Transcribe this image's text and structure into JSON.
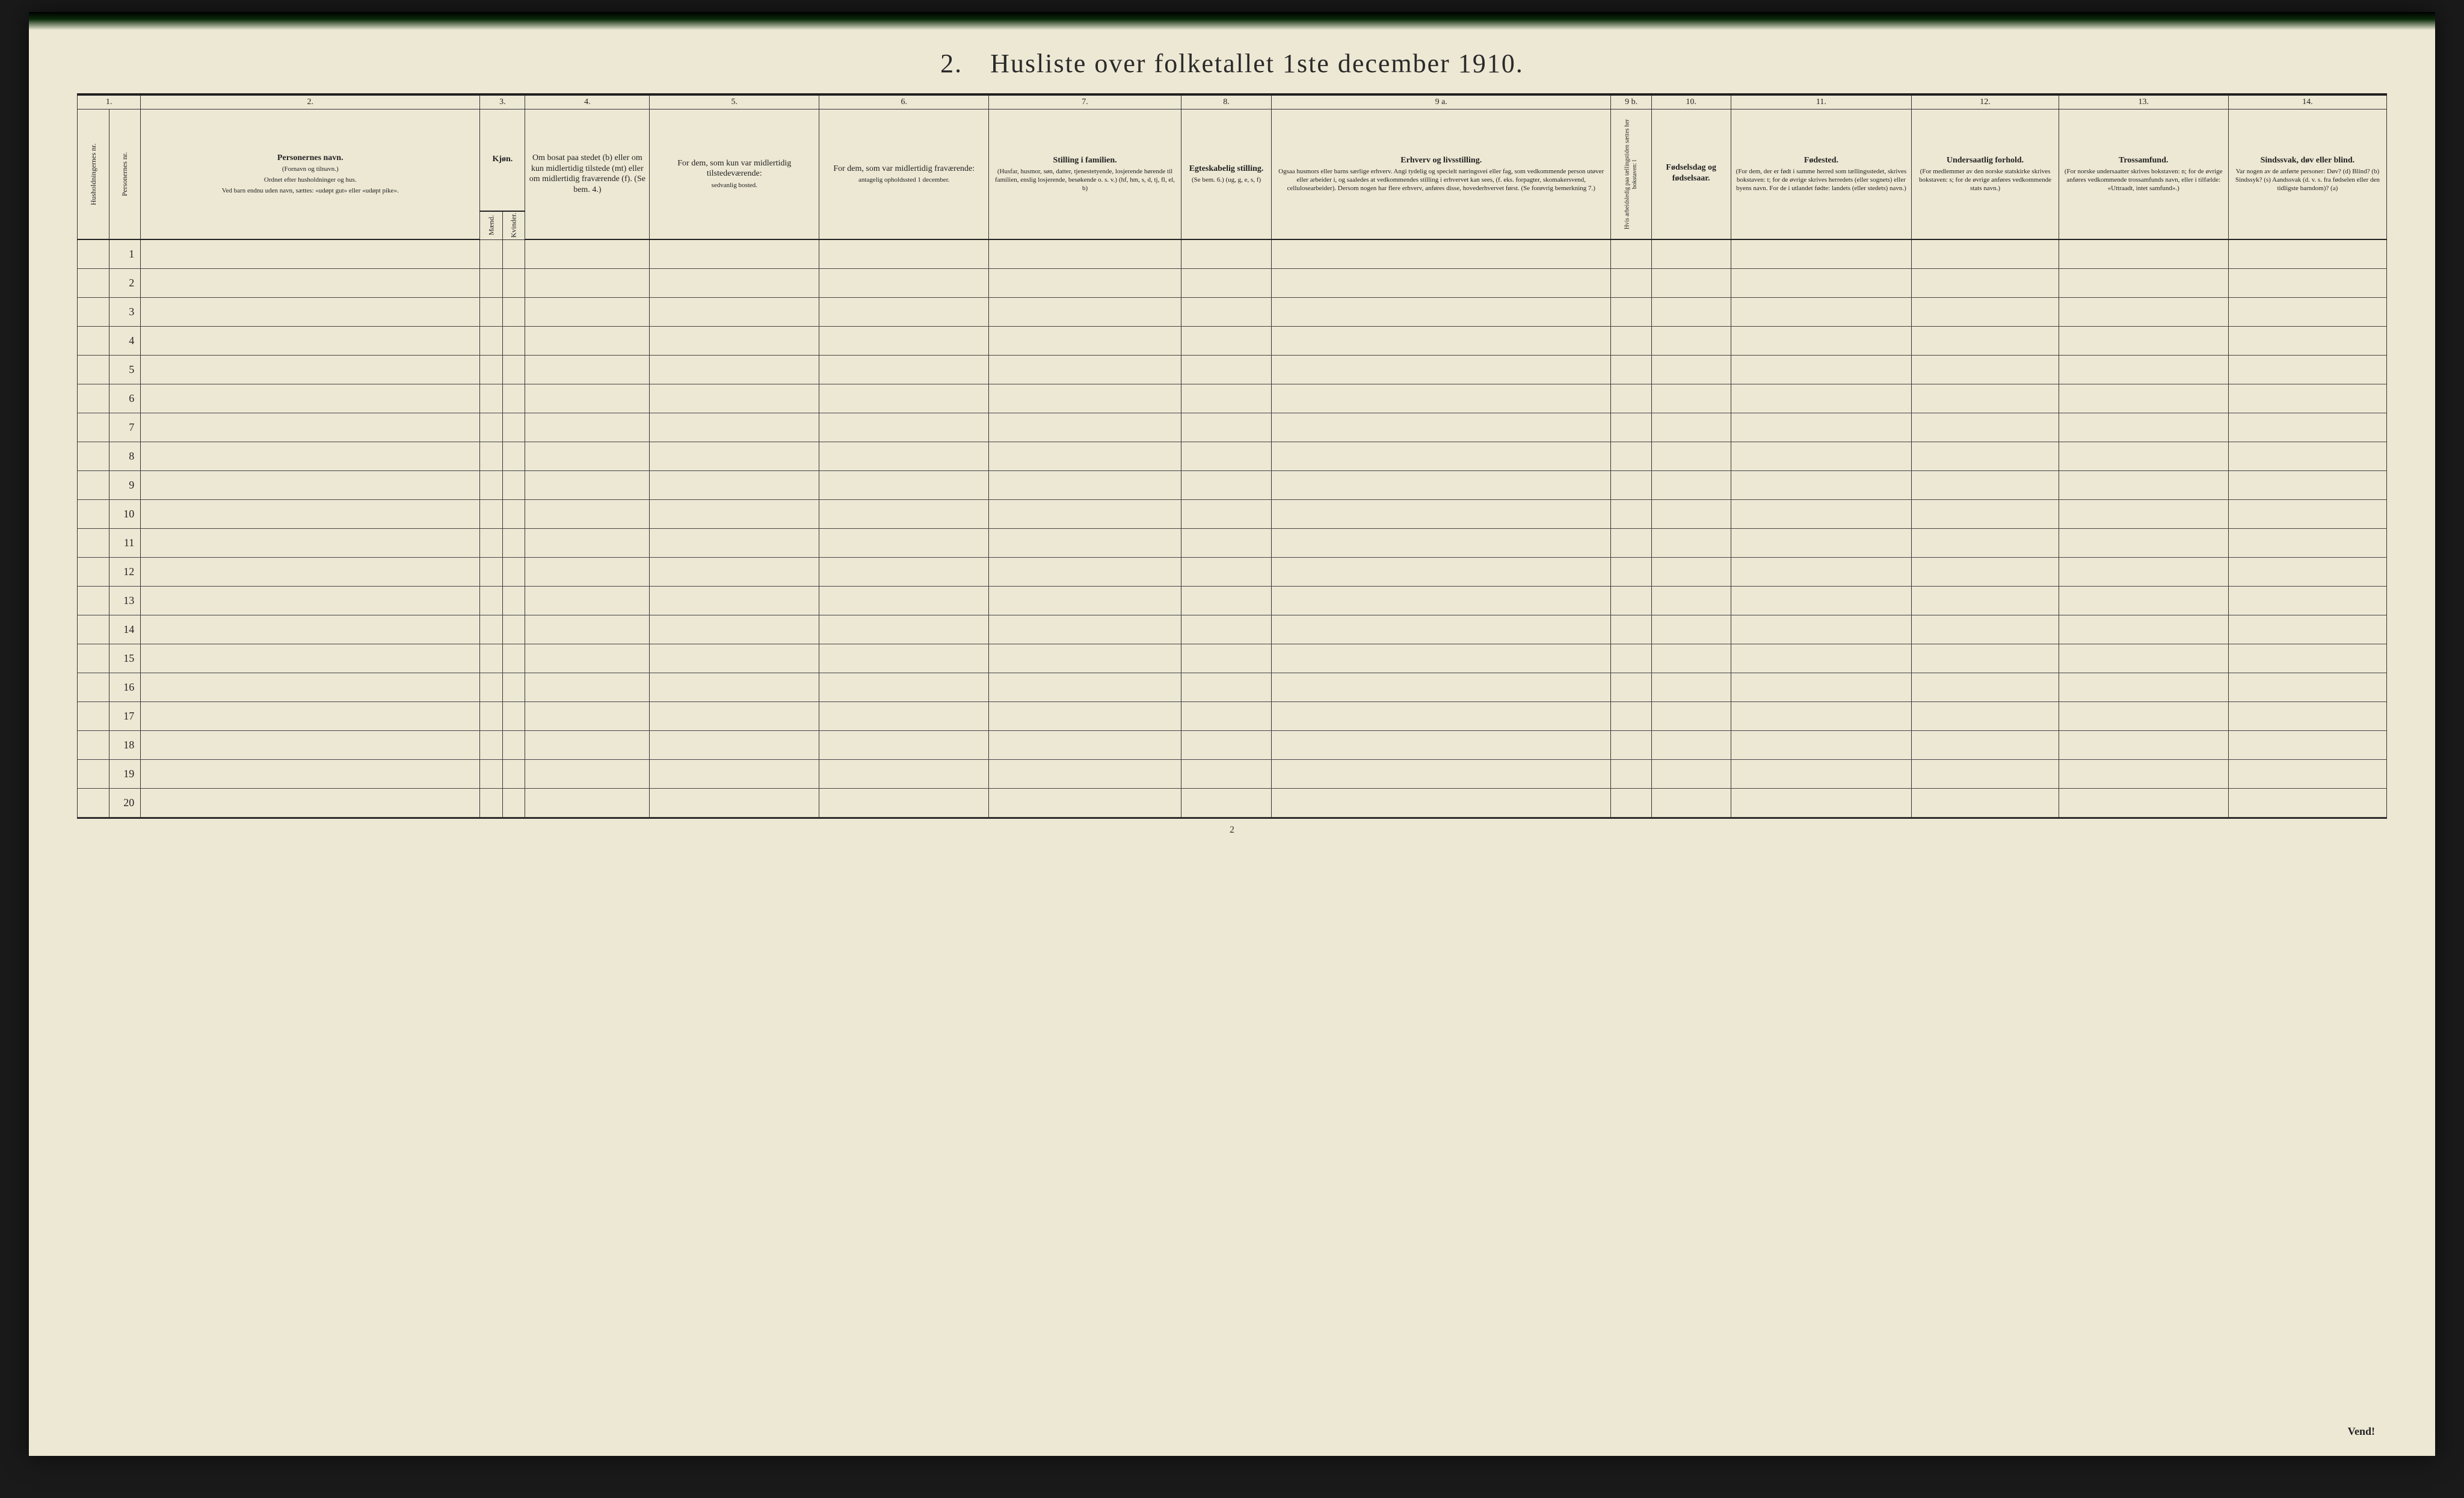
{
  "title": "2. Husliste over folketallet 1ste december 1910.",
  "page_number": "2",
  "vend": "Vend!",
  "colnums": {
    "c1": "1.",
    "c2": "2.",
    "c3": "3.",
    "c4": "4.",
    "c5": "5.",
    "c6": "6.",
    "c7": "7.",
    "c8": "8.",
    "c9a": "9 a.",
    "c9b": "9 b.",
    "c10": "10.",
    "c11": "11.",
    "c12": "12.",
    "c13": "13.",
    "c14": "14."
  },
  "headers": {
    "hus": "Husholdningernes nr.",
    "pers": "Personernes nr.",
    "navn_title": "Personernes navn.",
    "navn_sub1": "(Fornavn og tilnavn.)",
    "navn_sub2": "Ordnet efter husholdninger og hus.",
    "navn_sub3": "Ved barn endnu uden navn, sættes: «udøpt gut» eller «udøpt pike».",
    "kjon": "Kjøn.",
    "maend": "Mænd.",
    "kvinder": "Kvinder.",
    "m": "m.",
    "k": "k.",
    "bosat": "Om bosat paa stedet (b) eller om kun midlertidig tilstede (mt) eller om midlertidig fraværende (f). (Se bem. 4.)",
    "col5": "For dem, som kun var midlertidig tilstedeværende:",
    "col5_sub": "sedvanlig bosted.",
    "col6": "For dem, som var midlertidig fraværende:",
    "col6_sub": "antagelig opholdssted 1 december.",
    "col7": "Stilling i familien.",
    "col7_sub": "(Husfar, husmor, søn, datter, tjenestetyende, losjerende hørende til familien, enslig losjerende, besøkende o. s. v.) (hf, hm, s, d, tj, fl, el, b)",
    "col8": "Egteskabelig stilling.",
    "col8_sub": "(Se bem. 6.) (ug, g, e, s, f)",
    "col9a": "Erhverv og livsstilling.",
    "col9a_sub": "Ogsaa husmors eller barns særlige erhverv. Angi tydelig og specielt næringsvei eller fag, som vedkommende person utøver eller arbeider i, og saaledes at vedkommendes stilling i erhvervet kan sees, (f. eks. forpagter, skomakersvend, cellulosearbeider). Dersom nogen har flere erhverv, anføres disse, hovederhvervet først. (Se forøvrig bemerkning 7.)",
    "col9b": "Hvis arbeidsledig paa tællingstiden sættes her bokstaven: l",
    "col10": "Fødselsdag og fødselsaar.",
    "col11": "Fødested.",
    "col11_sub": "(For dem, der er født i samme herred som tællingsstedet, skrives bokstaven: t; for de øvrige skrives herredets (eller sognets) eller byens navn. For de i utlandet fødte: landets (eller stedets) navn.)",
    "col12": "Undersaatlig forhold.",
    "col12_sub": "(For medlemmer av den norske statskirke skrives bokstaven: s; for de øvrige anføres vedkommende stats navn.)",
    "col13": "Trossamfund.",
    "col13_sub": "(For norske undersaatter skrives bokstaven: n; for de øvrige anføres vedkommende trossamfunds navn, eller i tilfælde: «Uttraadt, intet samfund».)",
    "col14": "Sindssvak, døv eller blind.",
    "col14_sub": "Var nogen av de anførte personer: Døv? (d) Blind? (b) Sindssyk? (s) Aandssvak (d. v. s. fra fødselen eller den tidligste barndom)? (a)"
  },
  "rows": [
    "1",
    "2",
    "3",
    "4",
    "5",
    "6",
    "7",
    "8",
    "9",
    "10",
    "11",
    "12",
    "13",
    "14",
    "15",
    "16",
    "17",
    "18",
    "19",
    "20"
  ],
  "colors": {
    "paper": "#ede8d4",
    "ink": "#222222",
    "rule": "#333333"
  }
}
